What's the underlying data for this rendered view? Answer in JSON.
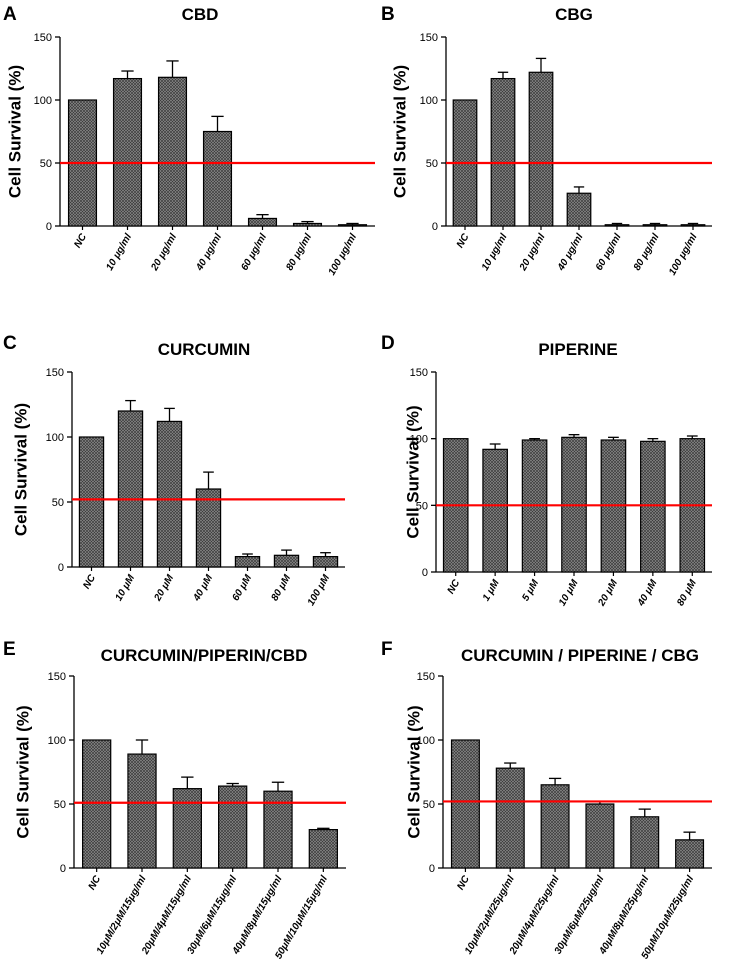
{
  "colors": {
    "bar_fill": "#8f8f8f",
    "bar_pattern": "crosshatch",
    "reference_line": "#ff0000",
    "axis": "#000000"
  },
  "chart_data": [
    {
      "panel": "A",
      "type": "bar",
      "title": "CBD",
      "ylabel": "Cell Survival (%)",
      "ylim": [
        0,
        150
      ],
      "yticks": [
        0,
        50,
        100,
        150
      ],
      "categories": [
        "NC",
        "10 μg/ml",
        "20 μg/ml",
        "40 μg/ml",
        "60 μg/ml",
        "80 μg/ml",
        "100 μg/ml"
      ],
      "values": [
        100,
        117,
        118,
        75,
        6,
        2,
        1
      ],
      "errors": [
        0,
        6,
        13,
        12,
        3,
        1.5,
        1
      ],
      "reference_line": 50
    },
    {
      "panel": "B",
      "type": "bar",
      "title": "CBG",
      "ylabel": "Cell Survival (%)",
      "ylim": [
        0,
        150
      ],
      "yticks": [
        0,
        50,
        100,
        150
      ],
      "categories": [
        "NC",
        "10 μg/ml",
        "20 μg/ml",
        "40 μg/ml",
        "60 μg/ml",
        "80 μg/ml",
        "100 μg/ml"
      ],
      "values": [
        100,
        117,
        122,
        26,
        1,
        1,
        1
      ],
      "errors": [
        0,
        5,
        11,
        5,
        1,
        1,
        1
      ],
      "reference_line": 50
    },
    {
      "panel": "C",
      "type": "bar",
      "title": "CURCUMIN",
      "ylabel": "Cell Survival (%)",
      "ylim": [
        0,
        150
      ],
      "yticks": [
        0,
        50,
        100,
        150
      ],
      "categories": [
        "NC",
        "10 μM",
        "20 μM",
        "40 μM",
        "60 μM",
        "80 μM",
        "100 μM"
      ],
      "values": [
        100,
        120,
        112,
        60,
        8,
        9,
        8
      ],
      "errors": [
        0,
        8,
        10,
        13,
        2,
        4,
        3
      ],
      "reference_line": 52
    },
    {
      "panel": "D",
      "type": "bar",
      "title": "PIPERINE",
      "ylabel": "Cell Survival (%)",
      "ylim": [
        0,
        150
      ],
      "yticks": [
        0,
        50,
        100,
        150
      ],
      "categories": [
        "NC",
        "1 μM",
        "5 μM",
        "10 μM",
        "20 μM",
        "40 μM",
        "80 μM"
      ],
      "values": [
        100,
        92,
        99,
        101,
        99,
        98,
        100
      ],
      "errors": [
        0,
        4,
        1,
        2,
        2,
        2,
        2
      ],
      "reference_line": 50
    },
    {
      "panel": "E",
      "type": "bar",
      "title": "CURCUMIN/PIPERIN/CBD",
      "ylabel": "Cell Survival (%)",
      "ylim": [
        0,
        150
      ],
      "yticks": [
        0,
        50,
        100,
        150
      ],
      "categories": [
        "NC",
        "10μM/2μM/15μg/ml",
        "20μM/4μM/15μg/ml",
        "30μM/6μM/15μg/ml",
        "40μM/8μM/15μg/ml",
        "50μM/10μM/15μg/ml"
      ],
      "values": [
        100,
        89,
        62,
        64,
        60,
        30
      ],
      "errors": [
        0,
        11,
        9,
        2,
        7,
        1
      ],
      "reference_line": 51
    },
    {
      "panel": "F",
      "type": "bar",
      "title": "CURCUMIN / PIPERINE / CBG",
      "ylabel": "Cell Survival (%)",
      "ylim": [
        0,
        150
      ],
      "yticks": [
        0,
        50,
        100,
        150
      ],
      "categories": [
        "NC",
        "10μM/2μM/25μg/ml",
        "20μM/4μM/25μg/ml",
        "30μM/6μM/25μg/ml",
        "40μM/8μM/25μg/ml",
        "50μM/10μM/25μg/ml"
      ],
      "values": [
        100,
        78,
        65,
        50,
        40,
        22
      ],
      "errors": [
        0,
        4,
        5,
        2,
        6,
        6
      ],
      "reference_line": 52
    }
  ]
}
